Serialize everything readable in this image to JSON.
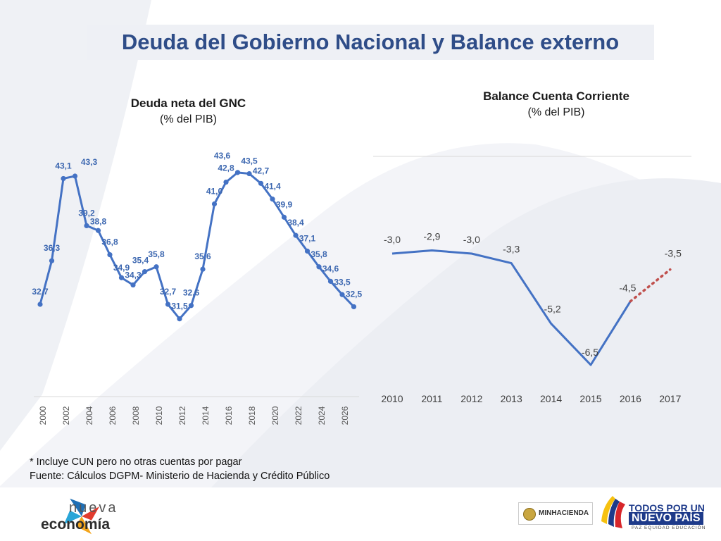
{
  "header": {
    "title": "Deuda del Gobierno Nacional y Balance externo"
  },
  "left_chart_title": {
    "line1": "Deuda neta del GNC",
    "line2": "(% del PIB)"
  },
  "right_chart_title": {
    "line1": "Balance Cuenta Corriente",
    "line2": "(% del PIB)"
  },
  "chart_data": [
    {
      "type": "line",
      "title": "Deuda neta del GNC",
      "subtitle": "(% del PIB)",
      "x": [
        2000,
        2001,
        2002,
        2003,
        2004,
        2005,
        2006,
        2007,
        2008,
        2009,
        2010,
        2011,
        2012,
        2013,
        2014,
        2015,
        2016,
        2017,
        2018,
        2019,
        2020,
        2021,
        2022,
        2023,
        2024,
        2025,
        2026,
        2027
      ],
      "values": [
        32.7,
        36.3,
        43.1,
        43.3,
        39.2,
        38.8,
        36.8,
        34.9,
        34.3,
        35.4,
        35.8,
        32.7,
        31.5,
        32.6,
        35.6,
        41.0,
        42.8,
        43.6,
        43.5,
        42.7,
        41.4,
        39.9,
        38.4,
        37.1,
        35.8,
        34.6,
        33.5,
        32.5
      ],
      "labels": [
        "32,7",
        "36,3",
        "43,1",
        "43,3",
        "39,2",
        "38,8",
        "36,8",
        "34,9",
        "34,3",
        "35,4",
        "35,8",
        "32,7",
        "31,5",
        "32,6",
        "35,6",
        "41,0",
        "42,8",
        "43,6",
        "43,5",
        "42,7",
        "41,4",
        "39,9",
        "38,4",
        "37,1",
        "35,8",
        "34,6",
        "33,5",
        "32,5"
      ],
      "x_tick_labels": [
        "2000",
        "2002",
        "2004",
        "2006",
        "2008",
        "2010",
        "2012",
        "2014",
        "2016",
        "2018",
        "2020",
        "2022",
        "2024",
        "2026"
      ],
      "series_color": "#4472c4",
      "label_color": "#3c67b0",
      "grid": false
    },
    {
      "type": "line",
      "title": "Balance Cuenta Corriente",
      "subtitle": "(% del PIB)",
      "categories": [
        "2010",
        "2011",
        "2012",
        "2013",
        "2014",
        "2015",
        "2016",
        "2017"
      ],
      "values": [
        -3.0,
        -2.9,
        -3.0,
        -3.3,
        -5.2,
        -6.5,
        -4.5,
        -3.5
      ],
      "labels": [
        "-3,0",
        "-2,9",
        "-3,0",
        "-3,3",
        "-5,2",
        "-6,5",
        "-4,5",
        "-3,5"
      ],
      "projected_from_index": 6,
      "series_color": "#4472c4",
      "projection_color": "#c0504d",
      "grid": false
    }
  ],
  "footnote": {
    "line1": "* Incluye CUN pero no otras cuentas por pagar",
    "line2": "Fuente: Cálculos DGPM- Ministerio de Hacienda y Crédito Público"
  },
  "footer": {
    "nueva_economia_top": "nueva",
    "nueva_economia_bottom": "economía",
    "minhacienda": "MINHACIENDA",
    "gov_line1": "TODOS POR UN",
    "gov_line2": "NUEVO PAÍS",
    "gov_line3": "PAZ  EQUIDAD  EDUCACIÓN"
  },
  "colors": {
    "title": "#2f4d88",
    "series": "#4472c4",
    "projection": "#c0504d",
    "background_shape": "#eef0f4"
  }
}
